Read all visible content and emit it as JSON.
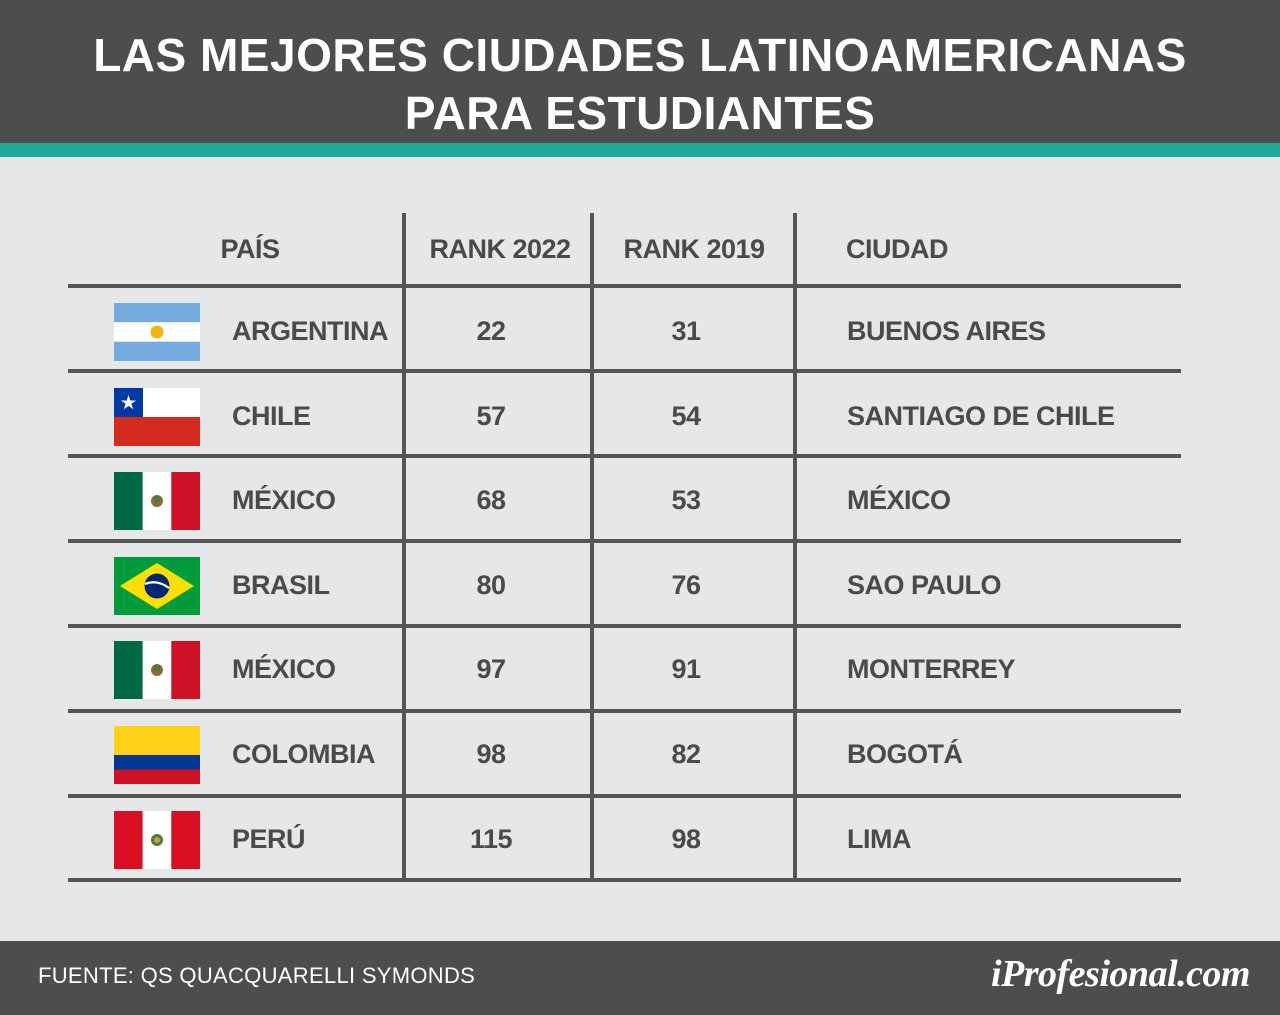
{
  "title": {
    "line1": "LAS MEJORES CIUDADES LATINOAMERICANAS",
    "line2": "PARA ESTUDIANTES"
  },
  "colors": {
    "header_bg": "#4d4d4d",
    "accent": "#1fa99a",
    "body_bg": "#e6e7e8",
    "text": "#4a4a4a"
  },
  "chart_data": {
    "type": "table",
    "columns": [
      "PAÍS",
      "RANK 2022",
      "RANK 2019",
      "CIUDAD"
    ],
    "rows": [
      {
        "flag": "argentina-flag",
        "country": "ARGENTINA",
        "rank2022": "22",
        "rank2019": "31",
        "city": "BUENOS AIRES"
      },
      {
        "flag": "chile-flag",
        "country": "CHILE",
        "rank2022": "57",
        "rank2019": "54",
        "city": "SANTIAGO DE CHILE"
      },
      {
        "flag": "mexico-flag",
        "country": "MÉXICO",
        "rank2022": "68",
        "rank2019": "53",
        "city": "MÉXICO"
      },
      {
        "flag": "brazil-flag",
        "country": "BRASIL",
        "rank2022": "80",
        "rank2019": "76",
        "city": "SAO PAULO"
      },
      {
        "flag": "mexico-flag",
        "country": "MÉXICO",
        "rank2022": "97",
        "rank2019": "91",
        "city": "MONTERREY"
      },
      {
        "flag": "colombia-flag",
        "country": "COLOMBIA",
        "rank2022": "98",
        "rank2019": "82",
        "city": "BOGOTÁ"
      },
      {
        "flag": "peru-flag",
        "country": "PERÚ",
        "rank2022": "115",
        "rank2019": "98",
        "city": "LIMA"
      }
    ]
  },
  "footer": {
    "source": "FUENTE: QS QUACQUARELLI SYMONDS",
    "brand": "iProfesional.com"
  }
}
